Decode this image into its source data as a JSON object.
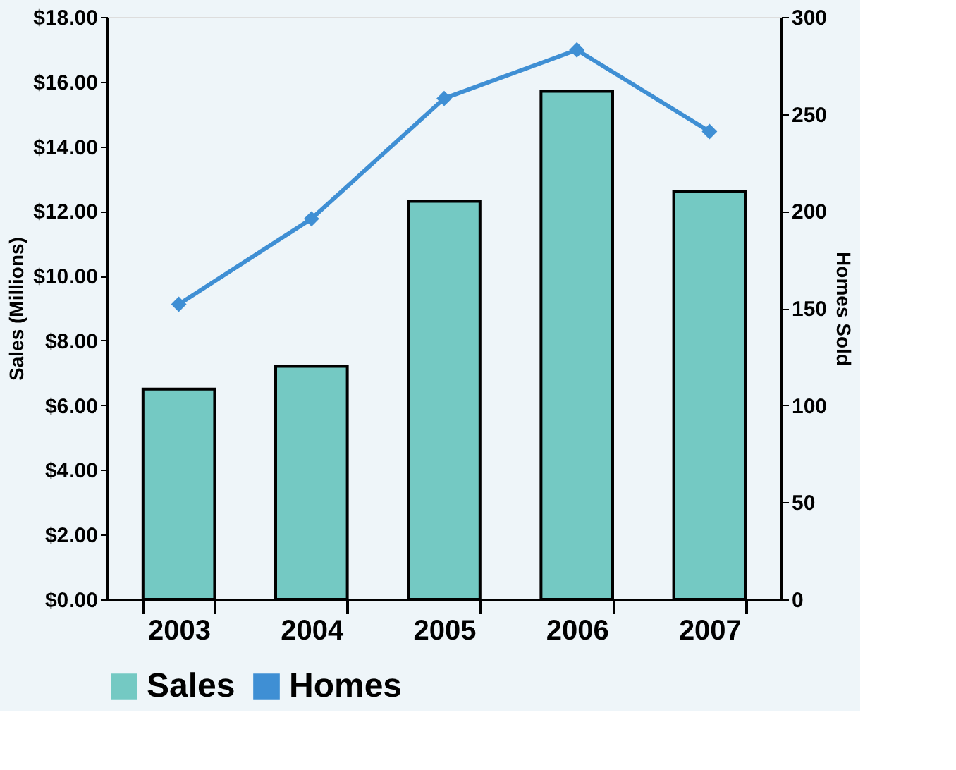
{
  "chart_data": {
    "type": "bar",
    "categories": [
      "2003",
      "2004",
      "2005",
      "2006",
      "2007"
    ],
    "ylabel": "Sales  (Millions)",
    "y2label": "Homes Sold",
    "series": [
      {
        "name": "Sales",
        "color": "#74c9c3",
        "values": [
          6.5,
          7.2,
          12.3,
          15.7,
          12.6
        ]
      },
      {
        "name": "Homes",
        "type": "line",
        "axis": "y2",
        "color": "#3f8fd4",
        "values": [
          152,
          196,
          258,
          283,
          241
        ]
      }
    ],
    "ylim": [
      0,
      18
    ],
    "yticks": [
      {
        "value": 0,
        "label": "$0.00"
      },
      {
        "value": 2,
        "label": "$2.00"
      },
      {
        "value": 4,
        "label": "$4.00"
      },
      {
        "value": 6,
        "label": "$6.00"
      },
      {
        "value": 8,
        "label": "$8.00"
      },
      {
        "value": 10,
        "label": "$10.00"
      },
      {
        "value": 12,
        "label": "$12.00"
      },
      {
        "value": 14,
        "label": "$14.00"
      },
      {
        "value": 16,
        "label": "$16.00"
      },
      {
        "value": 18,
        "label": "$18.00"
      }
    ],
    "y2lim": [
      0,
      300
    ],
    "y2ticks": [
      0,
      50,
      100,
      150,
      200,
      250,
      300
    ],
    "marker": "diamond",
    "legend": "bottom",
    "grid": false
  }
}
